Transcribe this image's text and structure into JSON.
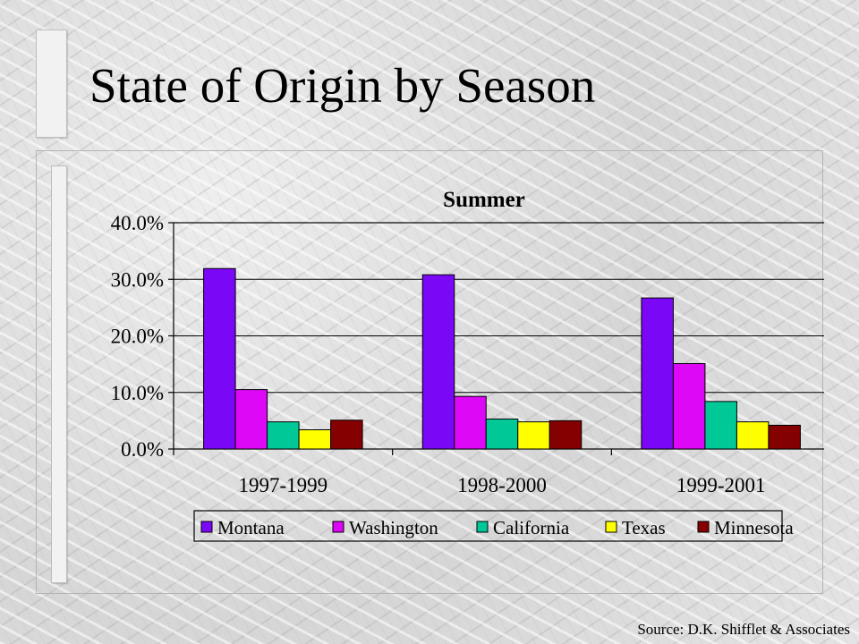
{
  "slide": {
    "title": "State of Origin by Season",
    "source": "Source: D.K. Shifflet & Associates"
  },
  "chart_data": {
    "type": "bar",
    "title": "Summer",
    "xlabel": "",
    "ylabel": "",
    "ylim": [
      0,
      40
    ],
    "yticks": [
      0,
      10,
      20,
      30,
      40
    ],
    "ytick_labels": [
      "0.0%",
      "10.0%",
      "20.0%",
      "30.0%",
      "40.0%"
    ],
    "grid": true,
    "legend_position": "bottom",
    "categories": [
      "1997-1999",
      "1998-2000",
      "1999-2001"
    ],
    "series": [
      {
        "name": "Montana",
        "color": "#7b07f7",
        "values": [
          31.9,
          30.8,
          26.7
        ]
      },
      {
        "name": "Washington",
        "color": "#dc08f6",
        "values": [
          10.5,
          9.3,
          15.1
        ]
      },
      {
        "name": "California",
        "color": "#00c896",
        "values": [
          4.8,
          5.3,
          8.4
        ]
      },
      {
        "name": "Texas",
        "color": "#ffff00",
        "values": [
          3.4,
          4.8,
          4.8
        ]
      },
      {
        "name": "Minnesota",
        "color": "#850000",
        "values": [
          5.1,
          5.0,
          4.2
        ]
      }
    ]
  }
}
